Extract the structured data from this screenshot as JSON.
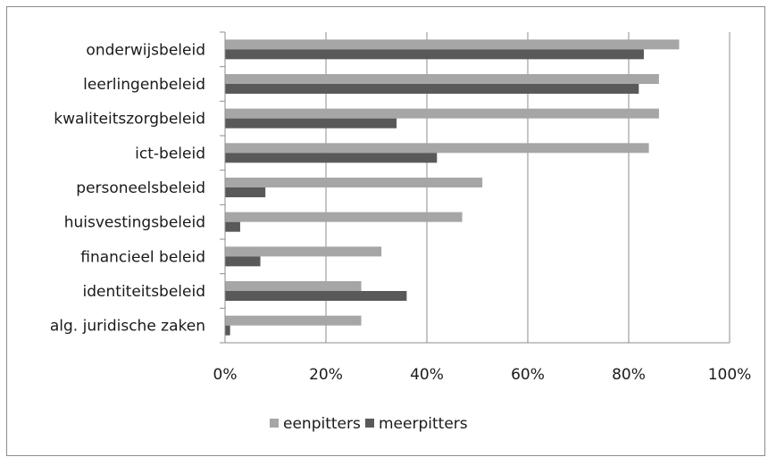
{
  "chart_data": {
    "type": "bar",
    "orientation": "horizontal",
    "categories": [
      "onderwijsbeleid",
      "leerlingenbeleid",
      "kwaliteitszorgbeleid",
      "ict-beleid",
      "personeelsbeleid",
      "huisvestingsbeleid",
      "financieel beleid",
      "identiteitsbeleid",
      "alg. juridische zaken"
    ],
    "series": [
      {
        "name": "eenpitters",
        "color": "#a6a6a6",
        "values": [
          90,
          86,
          86,
          84,
          51,
          47,
          31,
          27,
          27
        ]
      },
      {
        "name": "meerpitters",
        "color": "#595959",
        "values": [
          83,
          82,
          34,
          42,
          8,
          3,
          7,
          36,
          1
        ]
      }
    ],
    "xlim": [
      0,
      100
    ],
    "xticks": [
      0,
      20,
      40,
      60,
      80,
      100
    ],
    "tick_suffix": "%",
    "grid": "vertical",
    "legend_position": "bottom",
    "title": "",
    "xlabel": "",
    "ylabel": ""
  }
}
